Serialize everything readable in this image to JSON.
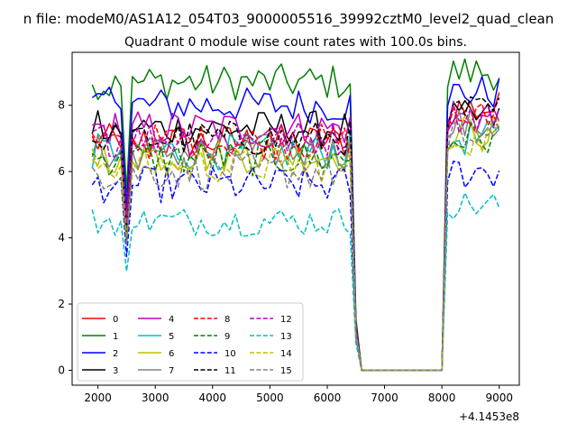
{
  "chart_data": {
    "type": "line",
    "suptitle": "n file: modeM0/AS1A12_054T03_9000005516_39992cztM0_level2_quad_clean",
    "title": "Quadrant 0 module wise count rates with 100.0s bins.",
    "xlabel": "",
    "ylabel": "",
    "offset_text": "+4.1453e8",
    "xlim": [
      1550,
      9350
    ],
    "ylim": [
      -0.45,
      9.6
    ],
    "x_ticks": [
      2000,
      3000,
      4000,
      5000,
      6000,
      7000,
      8000,
      9000
    ],
    "x_tick_labels": [
      "2000",
      "3000",
      "4000",
      "5000",
      "6000",
      "7000",
      "8000",
      "9000"
    ],
    "y_ticks": [
      0,
      2,
      4,
      6,
      8
    ],
    "y_tick_labels": [
      "0",
      "2",
      "4",
      "6",
      "8"
    ],
    "grid": false,
    "legend_position": "lower-left",
    "legend_columns": 4,
    "gap": {
      "drop_start": 6500,
      "zero_start": 6600,
      "zero_end": 8000,
      "rise_end": 8100
    },
    "dip": {
      "x": 2500,
      "depth": 0.6
    },
    "series": [
      {
        "name": "0",
        "color": "#ff0000",
        "dash": "solid",
        "level": 6.9,
        "end_level": 7.9
      },
      {
        "name": "1",
        "color": "#008000",
        "dash": "solid",
        "level": 8.7,
        "end_level": 9.0
      },
      {
        "name": "2",
        "color": "#0000ff",
        "dash": "solid",
        "level": 8.0,
        "end_level": 8.4
      },
      {
        "name": "3",
        "color": "#000000",
        "dash": "solid",
        "level": 7.3,
        "end_level": 7.6
      },
      {
        "name": "4",
        "color": "#bf00bf",
        "dash": "solid",
        "level": 7.3,
        "end_level": 7.6
      },
      {
        "name": "5",
        "color": "#00bfbf",
        "dash": "solid",
        "level": 6.6,
        "end_level": 7.0
      },
      {
        "name": "6",
        "color": "#bfbf00",
        "dash": "solid",
        "level": 6.5,
        "end_level": 7.2
      },
      {
        "name": "7",
        "color": "#808080",
        "dash": "solid",
        "level": 6.6,
        "end_level": 7.4
      },
      {
        "name": "8",
        "color": "#ff0000",
        "dash": "dashed",
        "level": 6.9,
        "end_level": 7.6
      },
      {
        "name": "9",
        "color": "#008000",
        "dash": "dashed",
        "level": 6.4,
        "end_level": 7.0
      },
      {
        "name": "10",
        "color": "#0000ff",
        "dash": "dashed",
        "level": 5.6,
        "end_level": 6.0
      },
      {
        "name": "11",
        "color": "#000000",
        "dash": "dashed",
        "level": 7.0,
        "end_level": 7.8
      },
      {
        "name": "12",
        "color": "#bf00bf",
        "dash": "dashed",
        "level": 7.0,
        "end_level": 7.7
      },
      {
        "name": "13",
        "color": "#00bfbf",
        "dash": "dashed",
        "level": 4.5,
        "end_level": 5.0
      },
      {
        "name": "14",
        "color": "#bfbf00",
        "dash": "dashed",
        "level": 6.2,
        "end_level": 7.0
      },
      {
        "name": "15",
        "color": "#808080",
        "dash": "dashed",
        "level": 6.0,
        "end_level": 7.0
      }
    ]
  }
}
